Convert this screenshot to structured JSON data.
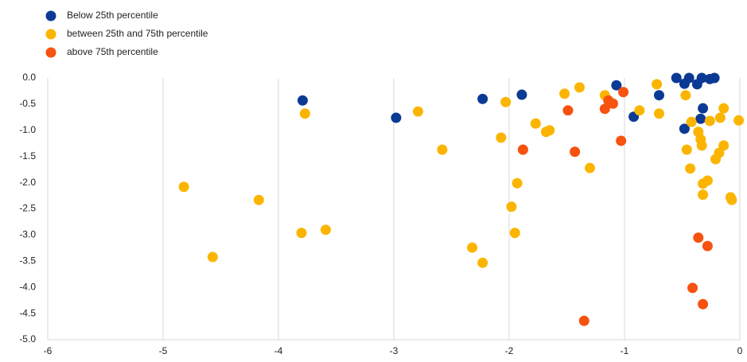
{
  "chart_data": {
    "type": "scatter",
    "series": [
      {
        "name": "Below 25th percentile",
        "color": "#0b3a94",
        "x": [
          -3.79,
          -2.98,
          -2.23,
          -1.89,
          -1.07,
          -0.92,
          -0.7,
          -0.55,
          -0.48,
          -0.44,
          -0.37,
          -0.33,
          -0.32,
          -0.34,
          -0.48,
          -0.26,
          -0.22
        ],
        "y": [
          -0.43,
          -0.76,
          -0.4,
          -0.32,
          -0.14,
          -0.74,
          -0.33,
          0.0,
          -0.11,
          0.0,
          -0.12,
          0.0,
          -0.58,
          -0.78,
          -0.97,
          -0.02,
          0.0
        ]
      },
      {
        "name": "between 25th and 75th percentile",
        "color": "#fbb500",
        "x": [
          -3.77,
          -2.79,
          -4.82,
          -4.57,
          -4.17,
          -3.8,
          -3.59,
          -2.58,
          -2.32,
          -2.23,
          -2.07,
          -2.03,
          -1.98,
          -1.95,
          -1.93,
          -1.77,
          -1.68,
          -1.65,
          -1.52,
          -1.39,
          -1.3,
          -1.17,
          -0.87,
          -0.72,
          -0.7,
          -0.47,
          -0.46,
          -0.43,
          -0.42,
          -0.36,
          -0.34,
          -0.33,
          -0.32,
          -0.32,
          -0.28,
          -0.26,
          -0.21,
          -0.18,
          -0.17,
          -0.14,
          -0.14,
          -0.08,
          -0.07,
          -0.01
        ],
        "y": [
          -0.68,
          -0.64,
          -2.08,
          -3.42,
          -2.33,
          -2.96,
          -2.9,
          -1.37,
          -3.24,
          -3.53,
          -1.14,
          -0.46,
          -2.46,
          -2.96,
          -2.01,
          -0.87,
          -1.03,
          -1.0,
          -0.3,
          -0.18,
          -1.72,
          -0.33,
          -0.62,
          -0.12,
          -0.68,
          -0.33,
          -1.37,
          -1.73,
          -0.84,
          -1.03,
          -1.17,
          -1.29,
          -2.02,
          -2.23,
          -1.96,
          -0.82,
          -1.55,
          -1.43,
          -0.76,
          -1.29,
          -0.58,
          -2.28,
          -2.33,
          -0.81
        ]
      },
      {
        "name": "above 75th percentile",
        "color": "#f7520f",
        "x": [
          -1.88,
          -1.49,
          -1.43,
          -1.35,
          -1.17,
          -1.14,
          -1.1,
          -1.01,
          -1.03,
          -0.41,
          -0.36,
          -0.32,
          -0.28
        ],
        "y": [
          -1.37,
          -0.62,
          -1.41,
          -4.64,
          -0.59,
          -0.43,
          -0.49,
          -0.27,
          -1.2,
          -4.01,
          -3.05,
          -4.32,
          -3.21
        ]
      }
    ],
    "xlim": [
      -6,
      0
    ],
    "xticks": [
      -6,
      -5,
      -4,
      -3,
      -2,
      -1,
      0
    ],
    "ylim": [
      -5,
      0
    ],
    "yticks": [
      {
        "value": 0,
        "label": "0.0"
      },
      -0.5,
      {
        "value": -1,
        "label": "-1.0"
      },
      -1.5,
      {
        "value": -2,
        "label": "-2.0"
      },
      -2.5,
      {
        "value": -3,
        "label": "-3.0"
      },
      -3.5,
      {
        "value": -4,
        "label": "-4.0"
      },
      -4.5,
      {
        "value": -5,
        "label": "-5.0"
      }
    ],
    "grid": true,
    "legend": "top-left"
  }
}
